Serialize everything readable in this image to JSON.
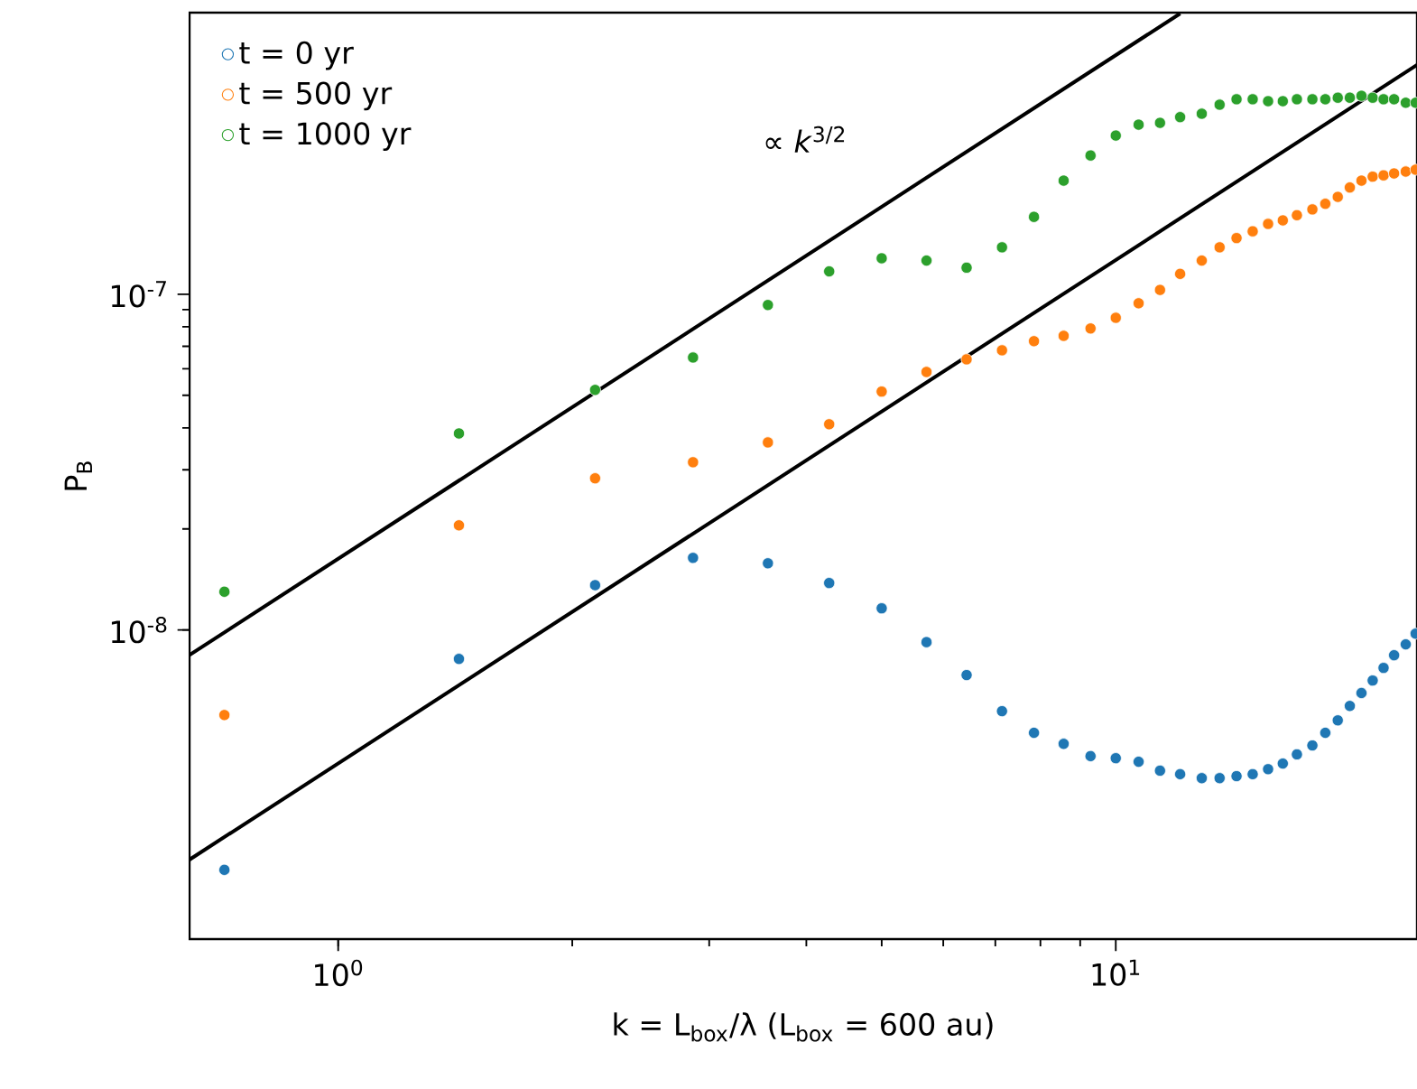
{
  "chart_data": {
    "type": "scatter",
    "xlabel": "k = L$_{box}$/λ        (L$_{box}$ =  600 au)",
    "ylabel": "P$_{B}$",
    "log": "xy",
    "marker": "circle",
    "legend": "top left",
    "annotations": [
      "∝ *k*$^{3/2}$"
    ],
    "xlim": [
      0.644,
      24.4
    ],
    "ylim": [
      1.2e-09,
      6.9e-07
    ],
    "xticks": [
      {
        "value": 1,
        "label": "10$^{0}$"
      },
      {
        "value": 10,
        "label": "10$^{1}$"
      }
    ],
    "yticks": [
      {
        "value": 1e-08,
        "label": "10$^{-8}$"
      },
      {
        "value": 1e-07,
        "label": "10$^{-7}$"
      }
    ],
    "x": [
      0.714,
      1.43,
      2.14,
      2.86,
      3.57,
      4.28,
      5.0,
      5.71,
      6.43,
      7.14,
      7.85,
      8.57,
      9.28,
      10.0,
      10.7,
      11.4,
      12.1,
      12.9,
      13.6,
      14.3,
      15.0,
      15.7,
      16.4,
      17.1,
      17.9,
      18.6,
      19.3,
      20.0,
      20.7,
      21.4,
      22.1,
      22.8,
      23.6,
      24.3
    ],
    "series": [
      {
        "name": "t = 0 yr",
        "color": "#1f77b4",
        "values": [
          1.93e-09,
          8.2e-09,
          1.36e-08,
          1.64e-08,
          1.58e-08,
          1.38e-08,
          1.16e-08,
          9.2e-09,
          7.34e-09,
          5.73e-09,
          4.94e-09,
          4.58e-09,
          4.21e-09,
          4.15e-09,
          4.05e-09,
          3.81e-09,
          3.72e-09,
          3.62e-09,
          3.62e-09,
          3.67e-09,
          3.72e-09,
          3.85e-09,
          4e-09,
          4.26e-09,
          4.53e-09,
          4.94e-09,
          5.38e-09,
          5.94e-09,
          6.49e-09,
          7.07e-09,
          7.71e-09,
          8.41e-09,
          9.06e-09,
          9.75e-09
        ]
      },
      {
        "name": "t = 500 yr",
        "color": "#ff7f0e",
        "values": [
          5.58e-09,
          2.05e-08,
          2.83e-08,
          3.16e-08,
          3.62e-08,
          4.1e-08,
          5.13e-08,
          5.87e-08,
          6.4e-08,
          6.81e-08,
          7.25e-08,
          7.52e-08,
          7.91e-08,
          8.51e-08,
          9.4e-08,
          1.03e-07,
          1.15e-07,
          1.26e-07,
          1.38e-07,
          1.47e-07,
          1.54e-07,
          1.62e-07,
          1.66e-07,
          1.72e-07,
          1.79e-07,
          1.86e-07,
          1.95e-07,
          2.08e-07,
          2.18e-07,
          2.24e-07,
          2.26e-07,
          2.29e-07,
          2.32e-07,
          2.35e-07
        ]
      },
      {
        "name": "t = 1000 yr",
        "color": "#2ca02c",
        "values": [
          1.3e-08,
          3.85e-08,
          5.19e-08,
          6.48e-08,
          9.29e-08,
          1.17e-07,
          1.28e-07,
          1.26e-07,
          1.2e-07,
          1.38e-07,
          1.7e-07,
          2.18e-07,
          2.59e-07,
          2.97e-07,
          3.2e-07,
          3.24e-07,
          3.37e-07,
          3.45e-07,
          3.67e-07,
          3.81e-07,
          3.81e-07,
          3.76e-07,
          3.76e-07,
          3.81e-07,
          3.81e-07,
          3.81e-07,
          3.85e-07,
          3.85e-07,
          3.9e-07,
          3.85e-07,
          3.81e-07,
          3.81e-07,
          3.72e-07,
          3.72e-07
        ]
      },
      {
        "type": "line",
        "marker": "none",
        "color": "#000000",
        "x": [
          0.644,
          12.1
        ],
        "values": [
          8.42e-09,
          6.86e-07
        ]
      },
      {
        "type": "line",
        "marker": "none",
        "color": "#000000",
        "x": [
          0.644,
          24.4
        ],
        "values": [
          2.07e-09,
          4.82e-07
        ]
      }
    ]
  }
}
